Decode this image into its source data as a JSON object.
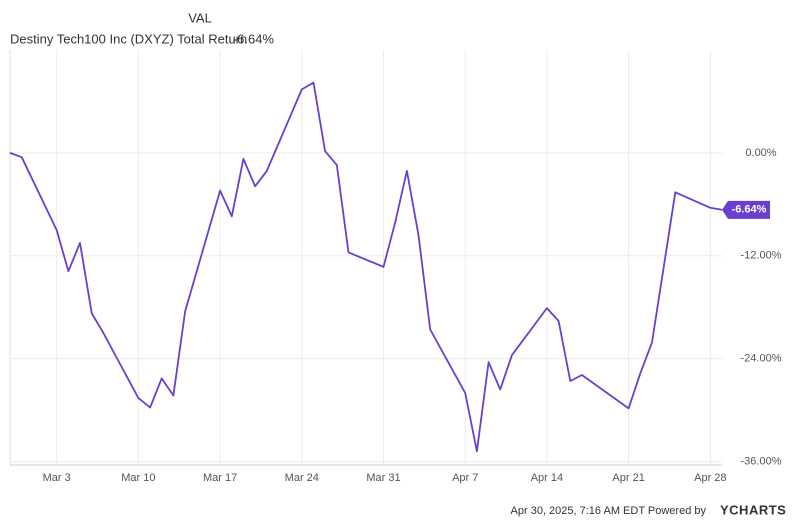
{
  "chart_data": {
    "type": "line",
    "legend_header": "VAL",
    "legend_value": "-6.64%",
    "footer": "Apr 30, 2025, 7:16 AM EDT Powered by",
    "brand": "YCHARTS",
    "x": [
      "Feb 27",
      "Feb 28",
      "Mar 3",
      "Mar 4",
      "Mar 5",
      "Mar 6",
      "Mar 7",
      "Mar 10",
      "Mar 11",
      "Mar 12",
      "Mar 13",
      "Mar 14",
      "Mar 17",
      "Mar 18",
      "Mar 19",
      "Mar 20",
      "Mar 21",
      "Mar 24",
      "Mar 25",
      "Mar 26",
      "Mar 27",
      "Mar 28",
      "Mar 31",
      "Apr 1",
      "Apr 2",
      "Apr 3",
      "Apr 4",
      "Apr 7",
      "Apr 8",
      "Apr 9",
      "Apr 10",
      "Apr 11",
      "Apr 14",
      "Apr 15",
      "Apr 16",
      "Apr 17",
      "Apr 21",
      "Apr 22",
      "Apr 23",
      "Apr 24",
      "Apr 25",
      "Apr 28",
      "Apr 29"
    ],
    "series": [
      {
        "name": "Destiny Tech100 Inc (DXYZ) Total Return",
        "color": "#6a3fd0",
        "values": [
          0,
          -0.5,
          -9.0,
          -13.8,
          -10.5,
          -18.7,
          -21.0,
          -28.6,
          -29.7,
          -26.3,
          -28.3,
          -18.5,
          -4.4,
          -7.4,
          -0.7,
          -3.9,
          -2.1,
          7.4,
          8.2,
          0.2,
          -1.4,
          -11.6,
          -13.3,
          -8.1,
          -2.1,
          -9.6,
          -20.6,
          -28.0,
          -34.8,
          -24.4,
          -27.6,
          -23.6,
          -18.1,
          -19.6,
          -26.6,
          -25.9,
          -29.8,
          -25.7,
          -22.1,
          -13.4,
          -4.6,
          -6.4,
          -6.64
        ]
      }
    ],
    "xlim": [
      "Feb 27",
      "Apr 29"
    ],
    "xticks": [
      "Mar 3",
      "Mar 10",
      "Mar 17",
      "Mar 24",
      "Mar 31",
      "Apr 7",
      "Apr 14",
      "Apr 21",
      "Apr 28"
    ],
    "ylim": [
      -36.4,
      12
    ],
    "yticks": [
      {
        "value": 0,
        "label": "0.00%"
      },
      {
        "value": -12,
        "label": "-12.00%"
      },
      {
        "value": -24,
        "label": "-24.00%"
      },
      {
        "value": -36,
        "label": "-36.00%"
      }
    ],
    "grid": true
  }
}
